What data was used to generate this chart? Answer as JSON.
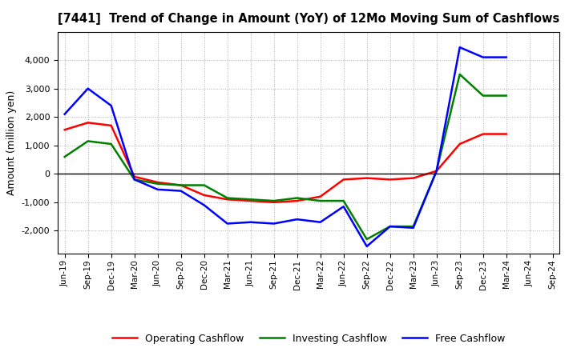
{
  "title": "[7441]  Trend of Change in Amount (YoY) of 12Mo Moving Sum of Cashflows",
  "ylabel": "Amount (million yen)",
  "background_color": "#ffffff",
  "grid_color": "#b0b0b0",
  "x_labels": [
    "Jun-19",
    "Sep-19",
    "Dec-19",
    "Mar-20",
    "Jun-20",
    "Sep-20",
    "Dec-20",
    "Mar-21",
    "Jun-21",
    "Sep-21",
    "Dec-21",
    "Mar-22",
    "Jun-22",
    "Sep-22",
    "Dec-22",
    "Mar-23",
    "Jun-23",
    "Sep-23",
    "Dec-23",
    "Mar-24",
    "Jun-24",
    "Sep-24"
  ],
  "operating_cashflow": [
    1550,
    1800,
    1700,
    -100,
    -300,
    -400,
    -750,
    -900,
    -950,
    -1000,
    -950,
    -800,
    -200,
    -150,
    -200,
    -150,
    100,
    1050,
    1400,
    1400,
    null,
    null
  ],
  "investing_cashflow": [
    600,
    1150,
    1050,
    -200,
    -350,
    -400,
    -400,
    -850,
    -900,
    -950,
    -850,
    -950,
    -950,
    -2300,
    -1850,
    -1850,
    100,
    3500,
    2750,
    2750,
    null,
    null
  ],
  "free_cashflow": [
    2100,
    3000,
    2400,
    -200,
    -550,
    -600,
    -1100,
    -1750,
    -1700,
    -1750,
    -1600,
    -1700,
    -1150,
    -2550,
    -1850,
    -1900,
    100,
    4450,
    4100,
    4100,
    null,
    null
  ],
  "line_colors": {
    "operating": "#ff0000",
    "investing": "#008000",
    "free": "#0000ff"
  },
  "ylim": [
    -2800,
    5000
  ],
  "yticks": [
    -2000,
    -1000,
    0,
    1000,
    2000,
    3000,
    4000
  ],
  "legend_labels": [
    "Operating Cashflow",
    "Investing Cashflow",
    "Free Cashflow"
  ]
}
